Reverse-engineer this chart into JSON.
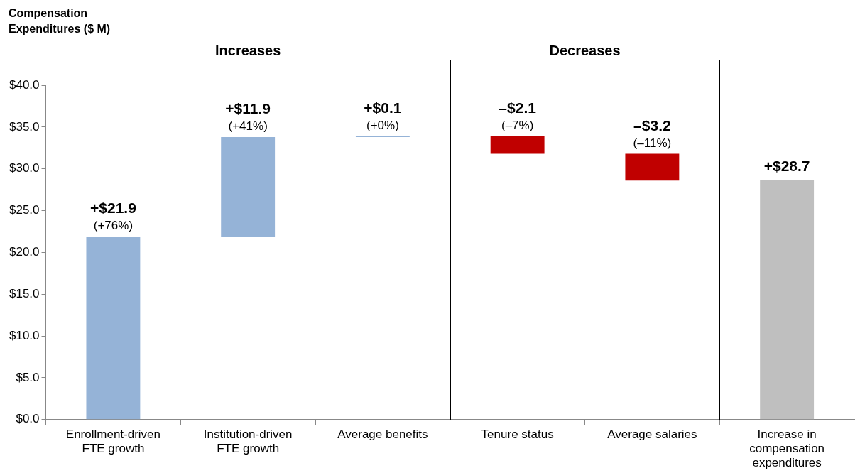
{
  "chart_data": {
    "type": "bar",
    "ylabel": "Compensation Expenditures ($ M)",
    "categories": [
      "Enrollment-driven FTE growth",
      "Institution-driven FTE growth",
      "Average benefits",
      "Tenure status",
      "Average salaries",
      "Increase in compensation expenditures"
    ],
    "values": [
      21.9,
      11.9,
      0.1,
      -2.1,
      -3.2,
      28.7
    ],
    "base": [
      0,
      21.9,
      33.8,
      33.9,
      31.8,
      0
    ],
    "colors": [
      "#95b3d7",
      "#95b3d7",
      "#95b3d7",
      "#c00000",
      "#c00000",
      "#bfbfbf"
    ],
    "value_labels": [
      "+$21.9",
      "+$11.9",
      "+$0.1",
      "–$2.1",
      "–$3.2",
      "+$28.7"
    ],
    "ylim": [
      0,
      40
    ],
    "yticks": [
      {
        "value": 0,
        "label": "$0.0"
      },
      {
        "value": 5,
        "label": "$5.0"
      },
      {
        "value": 10,
        "label": "$10.0"
      },
      {
        "value": 15,
        "label": "$15.0"
      },
      {
        "value": 20,
        "label": "$20.0"
      },
      {
        "value": 25,
        "label": "$25.0"
      },
      {
        "value": 30,
        "label": "$30.0"
      },
      {
        "value": 35,
        "label": "$35.0"
      },
      {
        "value": 40,
        "label": "$40.0"
      }
    ],
    "grid": false,
    "legend": false,
    "annotations": [
      "Increases",
      "Decreases",
      {
        "text": "(+76%)",
        "x": "Enrollment-driven FTE growth",
        "y": 21.9
      },
      {
        "text": "(+41%)",
        "x": "Institution-driven FTE growth",
        "y": 33.8
      },
      {
        "text": "(+0%)",
        "x": "Average benefits",
        "y": 33.9
      },
      {
        "text": "(–7%)",
        "x": "Tenure status",
        "y": 33.9
      },
      {
        "text": "(–11%)",
        "x": "Average salaries",
        "y": 31.8
      }
    ]
  }
}
